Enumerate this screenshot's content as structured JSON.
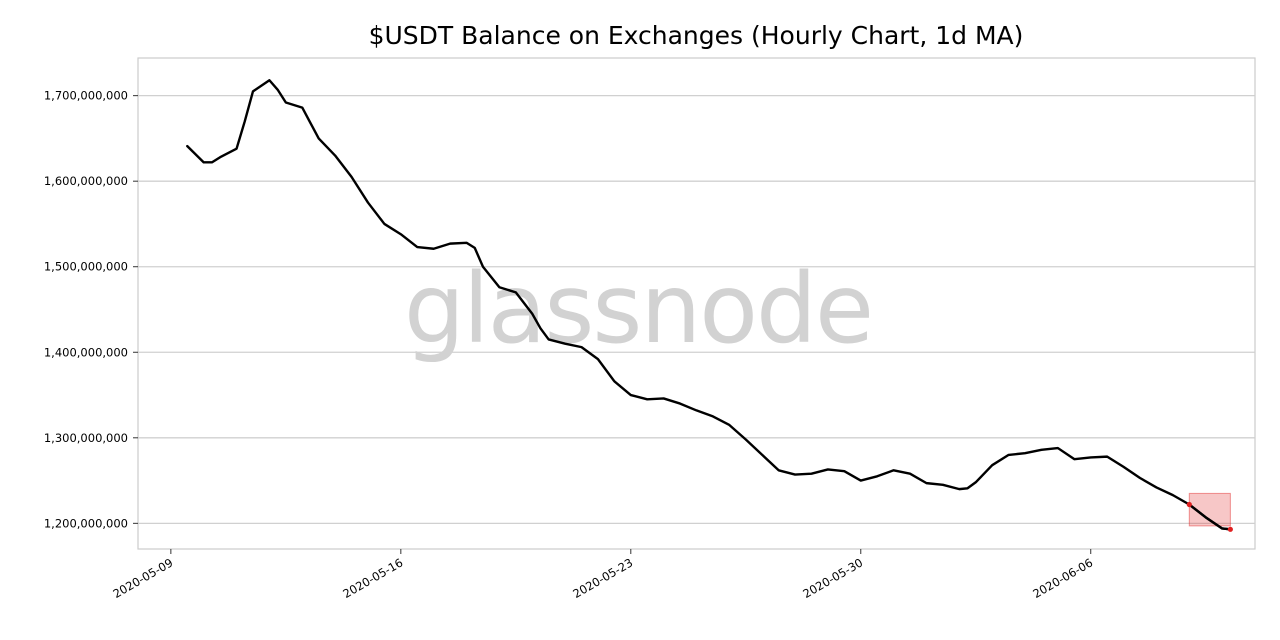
{
  "watermark": "glassnode",
  "chart_data": {
    "type": "line",
    "title": "$USDT Balance on Exchanges (Hourly Chart, 1d MA)",
    "xlabel": "",
    "ylabel": "",
    "x_tick_labels": [
      "2020-05-09",
      "2020-05-16",
      "2020-05-23",
      "2020-05-30",
      "2020-06-06"
    ],
    "y_tick_labels": [
      "1,200,000,000",
      "1,300,000,000",
      "1,400,000,000",
      "1,500,000,000",
      "1,600,000,000",
      "1,700,000,000"
    ],
    "y_ticks": [
      1200000000,
      1300000000,
      1400000000,
      1500000000,
      1600000000,
      1700000000
    ],
    "xlim": [
      "2020-05-08",
      "2020-06-11"
    ],
    "ylim": [
      1170000000,
      1744000000
    ],
    "grid": "horizontal",
    "legend": "none",
    "series": [
      {
        "color": "#000000",
        "x": [
          "2020-05-09T12:00",
          "2020-05-10T00:00",
          "2020-05-10T06:00",
          "2020-05-10T12:00",
          "2020-05-11T00:00",
          "2020-05-11T06:00",
          "2020-05-11T12:00",
          "2020-05-12T00:00",
          "2020-05-12T06:00",
          "2020-05-12T12:00",
          "2020-05-13T00:00",
          "2020-05-13T06:00",
          "2020-05-13T12:00",
          "2020-05-14T00:00",
          "2020-05-14T12:00",
          "2020-05-15T00:00",
          "2020-05-15T12:00",
          "2020-05-16T00:00",
          "2020-05-16T12:00",
          "2020-05-17T00:00",
          "2020-05-17T12:00",
          "2020-05-18T00:00",
          "2020-05-18T06:00",
          "2020-05-18T12:00",
          "2020-05-19T00:00",
          "2020-05-19T12:00",
          "2020-05-20T00:00",
          "2020-05-20T06:00",
          "2020-05-20T12:00",
          "2020-05-21T00:00",
          "2020-05-21T12:00",
          "2020-05-22T00:00",
          "2020-05-22T12:00",
          "2020-05-23T00:00",
          "2020-05-23T12:00",
          "2020-05-24T00:00",
          "2020-05-24T12:00",
          "2020-05-25T00:00",
          "2020-05-25T12:00",
          "2020-05-26T00:00",
          "2020-05-26T12:00",
          "2020-05-27T00:00",
          "2020-05-27T12:00",
          "2020-05-28T00:00",
          "2020-05-28T12:00",
          "2020-05-29T00:00",
          "2020-05-29T12:00",
          "2020-05-30T00:00",
          "2020-05-30T12:00",
          "2020-05-31T00:00",
          "2020-05-31T12:00",
          "2020-06-01T00:00",
          "2020-06-01T12:00",
          "2020-06-02T00:00",
          "2020-06-02T06:00",
          "2020-06-02T12:00",
          "2020-06-03T00:00",
          "2020-06-03T12:00",
          "2020-06-04T00:00",
          "2020-06-04T12:00",
          "2020-06-05T00:00",
          "2020-06-05T12:00",
          "2020-06-06T00:00",
          "2020-06-06T12:00",
          "2020-06-07T00:00",
          "2020-06-07T12:00",
          "2020-06-08T00:00",
          "2020-06-08T12:00",
          "2020-06-09T00:00",
          "2020-06-09T12:00",
          "2020-06-10T00:00",
          "2020-06-10T06:00"
        ],
        "values": [
          1641000000,
          1622000000,
          1622000000,
          1628000000,
          1638000000,
          1670000000,
          1705000000,
          1718000000,
          1707000000,
          1692000000,
          1686000000,
          1668000000,
          1650000000,
          1630000000,
          1605000000,
          1575000000,
          1550000000,
          1538000000,
          1523000000,
          1521000000,
          1527000000,
          1528000000,
          1522000000,
          1500000000,
          1476000000,
          1470000000,
          1445000000,
          1428000000,
          1415000000,
          1410000000,
          1406000000,
          1392000000,
          1366000000,
          1350000000,
          1345000000,
          1346000000,
          1340000000,
          1332000000,
          1325000000,
          1315000000,
          1298000000,
          1280000000,
          1262000000,
          1257000000,
          1258000000,
          1263000000,
          1261000000,
          1250000000,
          1255000000,
          1262000000,
          1258000000,
          1247000000,
          1245000000,
          1240000000,
          1241000000,
          1248000000,
          1268000000,
          1280000000,
          1282000000,
          1286000000,
          1288000000,
          1275000000,
          1277000000,
          1278000000,
          1266000000,
          1253000000,
          1242000000,
          1233000000,
          1222000000,
          1207000000,
          1194000000,
          1193000000
        ]
      }
    ],
    "highlight": {
      "color": "#e02020",
      "x_start": "2020-06-09T00:00",
      "x_end": "2020-06-10T06:00",
      "y_low": 1197000000,
      "y_high": 1235000000
    }
  }
}
